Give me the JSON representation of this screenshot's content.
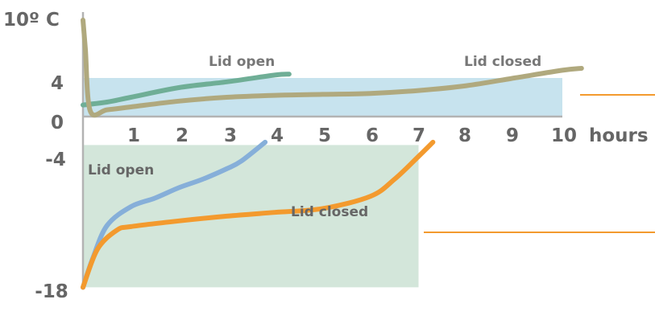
{
  "chart_data": {
    "type": "line",
    "y_axis_label": "10º C",
    "y_ticks": [
      "4",
      "0",
      "-4",
      "-18"
    ],
    "x_ticks": [
      "1",
      "2",
      "3",
      "4",
      "5",
      "6",
      "7",
      "8",
      "9",
      "10"
    ],
    "x_unit": "hours",
    "bands": [
      {
        "name": "refrigerator-zone",
        "y_range": [
          0,
          4
        ],
        "x_range": [
          0,
          10
        ],
        "color": "#c7e3ee"
      },
      {
        "name": "freezer-zone",
        "y_range": [
          -18,
          -3
        ],
        "x_range": [
          0,
          7
        ],
        "color": "#d3e6da"
      }
    ],
    "series": [
      {
        "name": "Lid open",
        "group": "refrigerator",
        "color": "#6fae96",
        "x": [
          0,
          0.5,
          1,
          2,
          3,
          4,
          4.3
        ],
        "y": [
          1.2,
          1.5,
          2.0,
          3.0,
          3.6,
          4.3,
          4.4
        ]
      },
      {
        "name": "Lid closed",
        "group": "refrigerator",
        "color": "#b0a97e",
        "x": [
          0,
          0.05,
          0.15,
          0.5,
          1,
          2,
          3,
          4,
          5,
          6,
          7,
          8,
          9,
          10,
          10.4
        ],
        "y": [
          10,
          7,
          0.6,
          0.7,
          1.0,
          1.6,
          2.0,
          2.2,
          2.3,
          2.4,
          2.7,
          3.2,
          4.0,
          4.8,
          5.0
        ]
      },
      {
        "name": "Lid open",
        "group": "freezer",
        "color": "#86afd9",
        "x": [
          0,
          0.2,
          0.5,
          1,
          1.5,
          2,
          2.5,
          3,
          3.3,
          3.8
        ],
        "y": [
          -18,
          -15,
          -11.5,
          -9.5,
          -8.6,
          -7.5,
          -6.6,
          -5.5,
          -4.7,
          -2.7
        ]
      },
      {
        "name": "Lid closed",
        "group": "freezer",
        "color": "#f39a2e",
        "x": [
          0,
          0.3,
          0.7,
          1,
          2,
          3,
          4,
          5,
          6,
          6.5,
          7,
          7.3
        ],
        "y": [
          -18,
          -14,
          -12,
          -11.6,
          -11,
          -10.5,
          -10.1,
          -9.7,
          -8.4,
          -6.6,
          -4.2,
          -2.7
        ]
      }
    ],
    "annotations": [
      "Lid open",
      "Lid closed",
      "Lid open",
      "Lid closed"
    ],
    "reference_lines_color": "#f39a2e"
  }
}
